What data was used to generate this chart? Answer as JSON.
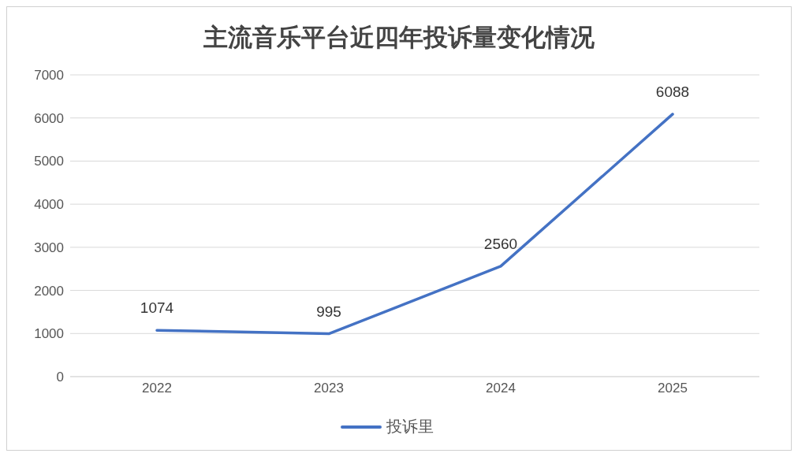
{
  "chart_data": {
    "type": "line",
    "title": "主流音乐平台近四年投诉量变化情况",
    "categories": [
      "2022",
      "2023",
      "2024",
      "2025"
    ],
    "series": [
      {
        "name": "投诉里",
        "color": "#4472c4",
        "values": [
          1074,
          995,
          2560,
          6088
        ]
      }
    ],
    "ylim": [
      0,
      7000
    ],
    "yticks": [
      0,
      1000,
      2000,
      3000,
      4000,
      5000,
      6000,
      7000
    ],
    "grid": "y",
    "legend": "bottom",
    "marker": "none",
    "line_style": "solid",
    "data_labels": true
  }
}
